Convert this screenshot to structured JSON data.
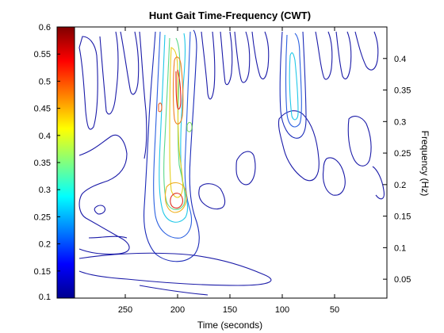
{
  "chart_data": {
    "type": "contour",
    "title": "Hunt Gait Time-Frequency (CWT)",
    "xlabel": "Time (seconds)",
    "ylabel": "Frequency (Hz)",
    "x_axis_reversed": true,
    "xlim": [
      0,
      300
    ],
    "ylim": [
      0.02,
      0.45
    ],
    "xticks": [
      "250",
      "200",
      "150",
      "100",
      "50"
    ],
    "xtick_values": [
      250,
      200,
      150,
      100,
      50
    ],
    "yticks": [
      "0.4",
      "0.35",
      "0.3",
      "0.25",
      "0.2",
      "0.15",
      "0.1",
      "0.05"
    ],
    "ytick_values": [
      0.4,
      0.35,
      0.3,
      0.25,
      0.2,
      0.15,
      0.1,
      0.05
    ],
    "colorbar": {
      "range": [
        0.1,
        0.6
      ],
      "ticks": [
        "0.6",
        "0.55",
        "0.5",
        "0.45",
        "0.4",
        "0.35",
        "0.3",
        "0.25",
        "0.2",
        "0.15",
        "0.1"
      ],
      "tick_values": [
        0.6,
        0.55,
        0.5,
        0.45,
        0.4,
        0.35,
        0.3,
        0.25,
        0.2,
        0.15,
        0.1
      ],
      "colormap": "jet"
    },
    "features": [
      {
        "name": "main-ridge",
        "time_center": 203,
        "freq_range": [
          0.08,
          0.45
        ],
        "peak_magnitude": 0.55
      },
      {
        "name": "secondary-peak",
        "time_center": 208,
        "freq_center": 0.205,
        "magnitude": 0.5
      },
      {
        "name": "right-ridge",
        "time_center": 95,
        "freq_range": [
          0.27,
          0.45
        ],
        "peak_magnitude": 0.3
      }
    ]
  }
}
